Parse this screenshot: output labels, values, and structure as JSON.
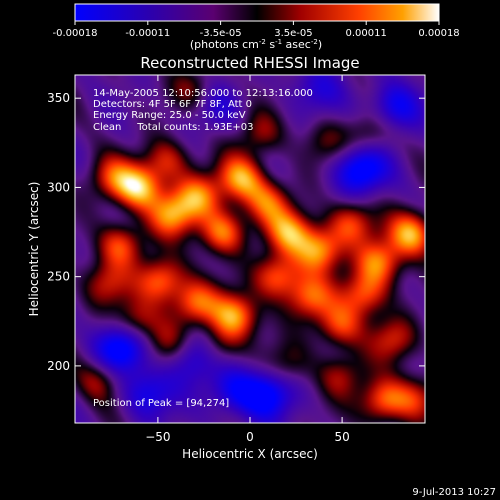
{
  "chart_data": {
    "type": "heatmap",
    "title": "Reconstructed RHESSI Image",
    "xlabel": "Heliocentric X (arcsec)",
    "ylabel": "Heliocentric Y (arcsec)",
    "xlim": [
      -95,
      95
    ],
    "ylim": [
      168,
      363
    ],
    "x_ticks": [
      -50,
      0,
      50
    ],
    "y_ticks": [
      200,
      250,
      300,
      350
    ],
    "colorbar": {
      "label_main": "(photons cm",
      "label_exp1": "-2",
      "label_mid": " s",
      "label_exp2": "-1",
      "label_mid2": " asec",
      "label_exp3": "-2",
      "label_end": ")",
      "ticks": [
        "-0.00018",
        "-0.00011",
        "-3.5e-05",
        "3.5e-05",
        "0.00011",
        "0.00018"
      ],
      "range": [
        -0.00018,
        0.00018
      ],
      "colormap": "heat-rainbow"
    },
    "annotations": [
      "14-May-2005 12:10:56.000 to 12:13:16.000",
      "Detectors: 4F 5F 6F 7F 8F, Att 0",
      "Energy Range: 25.0 - 50.0 keV",
      "Clean     Total counts: 1.93E+03"
    ],
    "peak_label": "Position of Peak = [94,274]",
    "peak": {
      "x": 94,
      "y": 274
    },
    "blobs": [
      {
        "x": -60,
        "y": 300,
        "v": 1.0
      },
      {
        "x": -42,
        "y": 285,
        "v": 0.85
      },
      {
        "x": -28,
        "y": 295,
        "v": 0.8
      },
      {
        "x": -70,
        "y": 268,
        "v": 0.75
      },
      {
        "x": -15,
        "y": 275,
        "v": 0.9
      },
      {
        "x": 10,
        "y": 292,
        "v": 0.7
      },
      {
        "x": 22,
        "y": 275,
        "v": 0.85
      },
      {
        "x": 38,
        "y": 265,
        "v": 0.95
      },
      {
        "x": 55,
        "y": 280,
        "v": 0.7
      },
      {
        "x": 70,
        "y": 258,
        "v": 0.85
      },
      {
        "x": 88,
        "y": 274,
        "v": 1.0
      },
      {
        "x": -48,
        "y": 248,
        "v": 0.9
      },
      {
        "x": -30,
        "y": 235,
        "v": 0.8
      },
      {
        "x": -8,
        "y": 228,
        "v": 0.95
      },
      {
        "x": 15,
        "y": 250,
        "v": 0.85
      },
      {
        "x": 32,
        "y": 238,
        "v": 0.75
      },
      {
        "x": 48,
        "y": 222,
        "v": 0.7
      },
      {
        "x": 62,
        "y": 240,
        "v": 0.8
      },
      {
        "x": 78,
        "y": 215,
        "v": 0.6
      },
      {
        "x": -62,
        "y": 225,
        "v": 0.6
      },
      {
        "x": -78,
        "y": 246,
        "v": 0.55
      },
      {
        "x": -5,
        "y": 305,
        "v": 0.9
      },
      {
        "x": -45,
        "y": 315,
        "v": 0.6
      },
      {
        "x": -75,
        "y": 305,
        "v": 0.6
      },
      {
        "x": -18,
        "y": 210,
        "v": 0.55
      },
      {
        "x": -45,
        "y": 212,
        "v": 0.45
      },
      {
        "x": 50,
        "y": 195,
        "v": 0.5
      },
      {
        "x": 72,
        "y": 180,
        "v": 0.85
      },
      {
        "x": 90,
        "y": 182,
        "v": 0.55
      },
      {
        "x": -82,
        "y": 192,
        "v": 0.5
      },
      {
        "x": 5,
        "y": 330,
        "v": 0.45
      },
      {
        "x": -30,
        "y": 355,
        "v": 0.4
      },
      {
        "x": 40,
        "y": 325,
        "v": 0.35
      },
      {
        "x": 65,
        "y": 330,
        "v": 0.45
      },
      {
        "x": 20,
        "y": 200,
        "v": 0.4
      }
    ],
    "dips": [
      {
        "x": -70,
        "y": 210,
        "v": 0.9
      },
      {
        "x": -30,
        "y": 205,
        "v": 0.7
      },
      {
        "x": 10,
        "y": 185,
        "v": 0.8
      },
      {
        "x": 60,
        "y": 310,
        "v": 0.9
      },
      {
        "x": 78,
        "y": 345,
        "v": 0.7
      },
      {
        "x": -10,
        "y": 185,
        "v": 0.6
      },
      {
        "x": -55,
        "y": 185,
        "v": 0.6
      },
      {
        "x": 35,
        "y": 355,
        "v": 0.4
      },
      {
        "x": -20,
        "y": 345,
        "v": 0.35
      }
    ]
  },
  "footer": {
    "timestamp": "9-Jul-2013 10:27"
  }
}
